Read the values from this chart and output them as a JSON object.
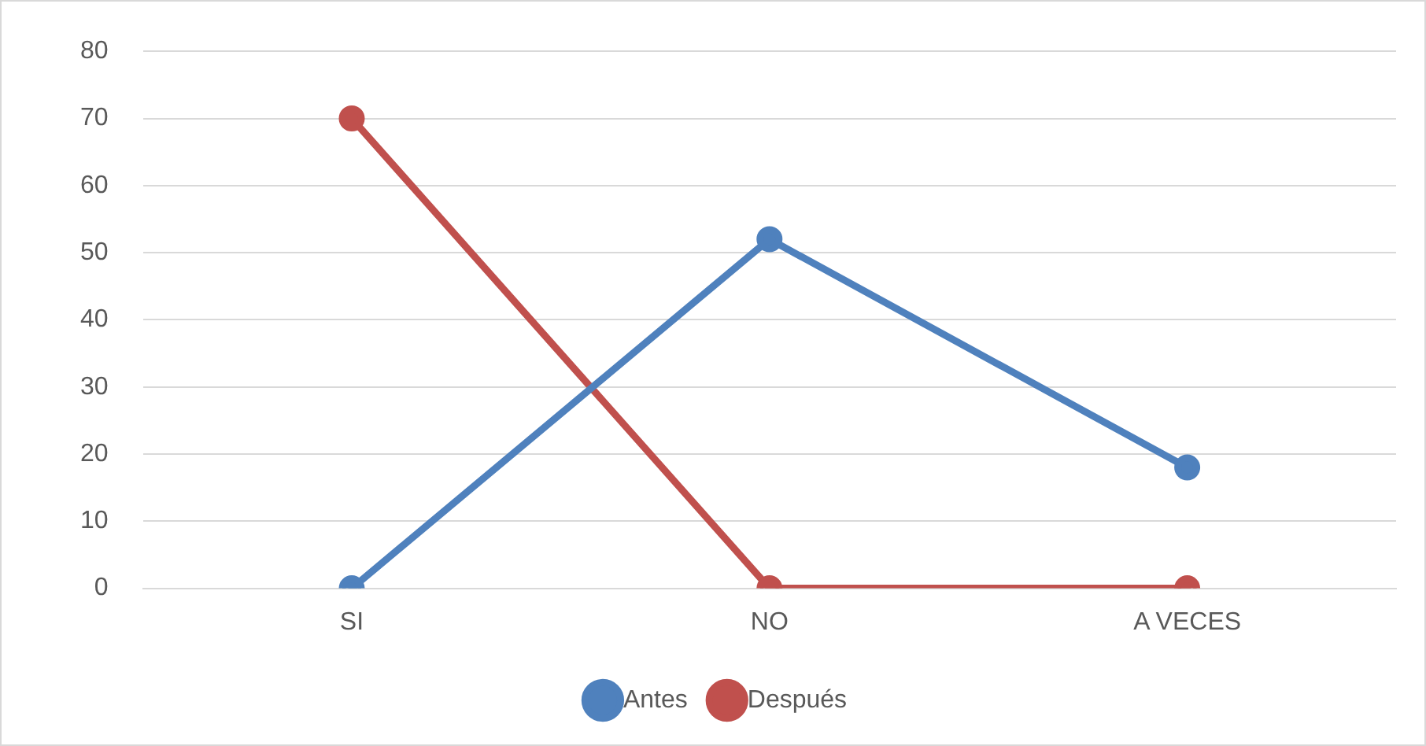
{
  "chart_data": {
    "type": "line",
    "categories": [
      "SI",
      "NO",
      "A VECES"
    ],
    "series": [
      {
        "name": "Antes",
        "color": "#4f81bd",
        "values": [
          0,
          52,
          18
        ]
      },
      {
        "name": "Después",
        "color": "#c0504d",
        "values": [
          70,
          0,
          0
        ]
      }
    ],
    "ylim": [
      0,
      80
    ],
    "yticks": [
      0,
      10,
      20,
      30,
      40,
      50,
      60,
      70,
      80
    ],
    "grid": "y",
    "legend": "bottom",
    "marker": "circle",
    "line_style": "solid"
  }
}
